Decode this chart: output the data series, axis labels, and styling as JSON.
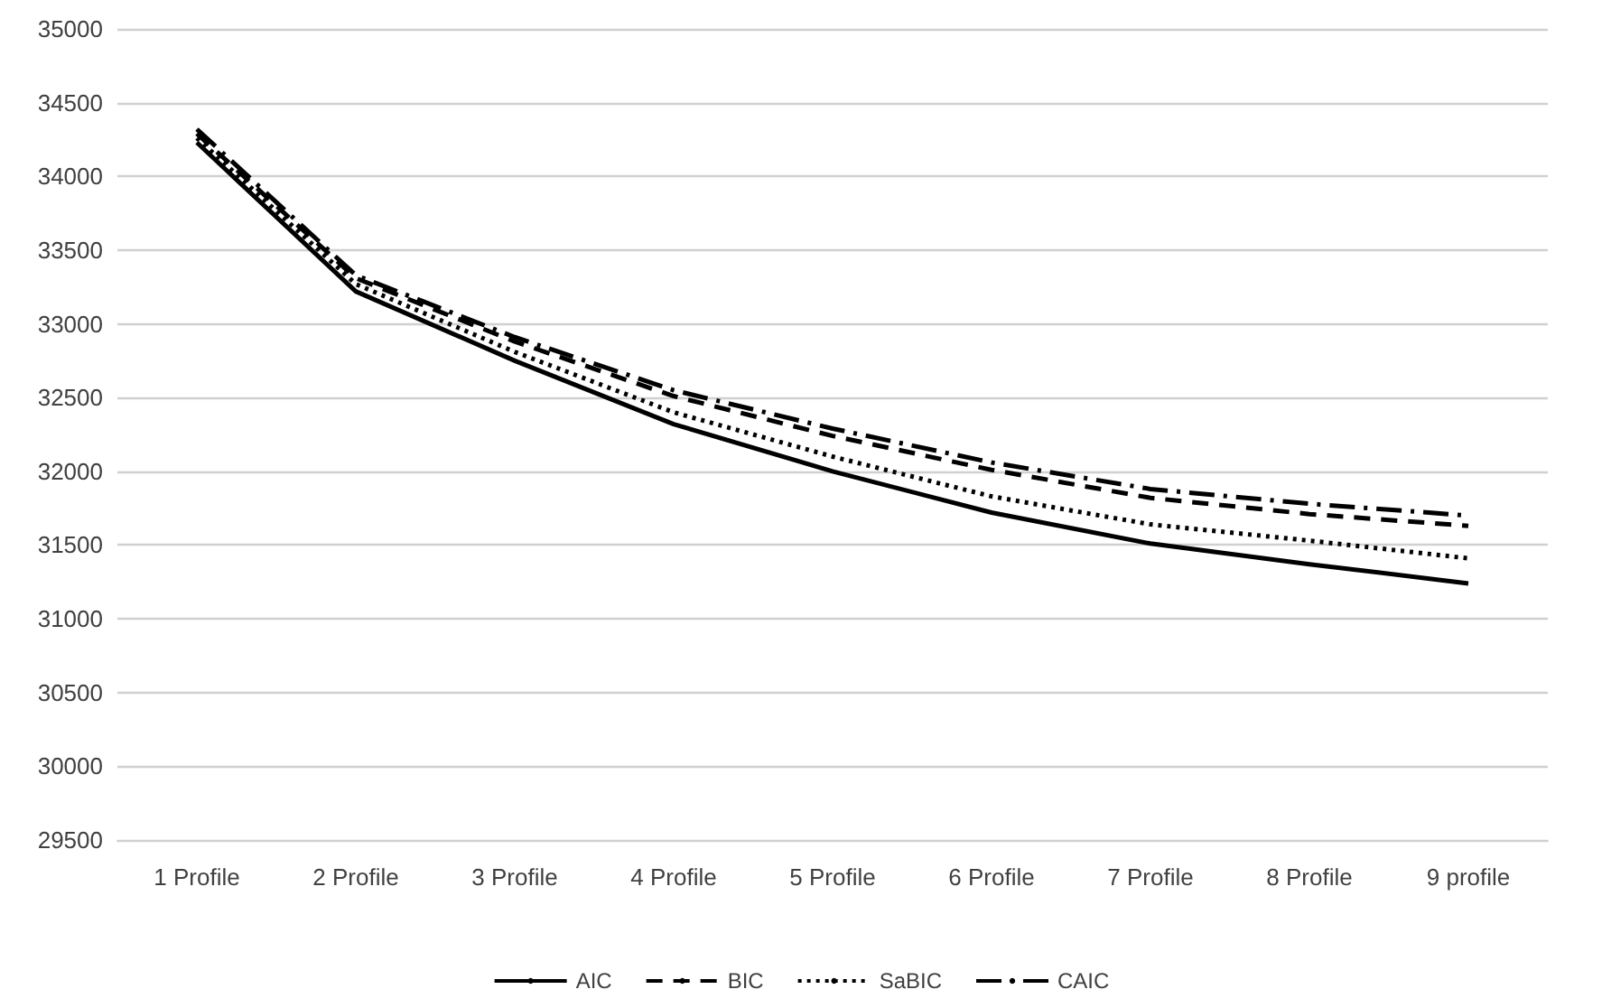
{
  "chart_data": {
    "type": "line",
    "categories": [
      "1 Profile",
      "2 Profile",
      "3 Profile",
      "4 Profile",
      "5 Profile",
      "6 Profile",
      "7 Profile",
      "8 Profile",
      "9 profile"
    ],
    "series": [
      {
        "name": "AIC",
        "color": "#000000",
        "line_style": "solid",
        "values": [
          34230,
          33220,
          32750,
          32320,
          32000,
          31720,
          31510,
          31370,
          31240
        ]
      },
      {
        "name": "BIC",
        "color": "#000000",
        "line_style": "dashed",
        "values": [
          34290,
          33310,
          32880,
          32510,
          32240,
          32010,
          31820,
          31710,
          31630
        ]
      },
      {
        "name": "SaBIC",
        "color": "#000000",
        "line_style": "dotted",
        "values": [
          34260,
          33270,
          32810,
          32400,
          32100,
          31830,
          31640,
          31530,
          31410
        ]
      },
      {
        "name": "CAIC",
        "color": "#000000",
        "line_style": "dashdot",
        "values": [
          34320,
          33330,
          32910,
          32550,
          32290,
          32060,
          31880,
          31780,
          31700
        ]
      }
    ],
    "ylim": [
      29500,
      35000
    ],
    "yticks": [
      29500,
      30000,
      30500,
      31000,
      31500,
      32000,
      32500,
      33000,
      33500,
      34000,
      34500,
      35000
    ],
    "grid": "y",
    "legend": "bottom",
    "marker": "none"
  }
}
